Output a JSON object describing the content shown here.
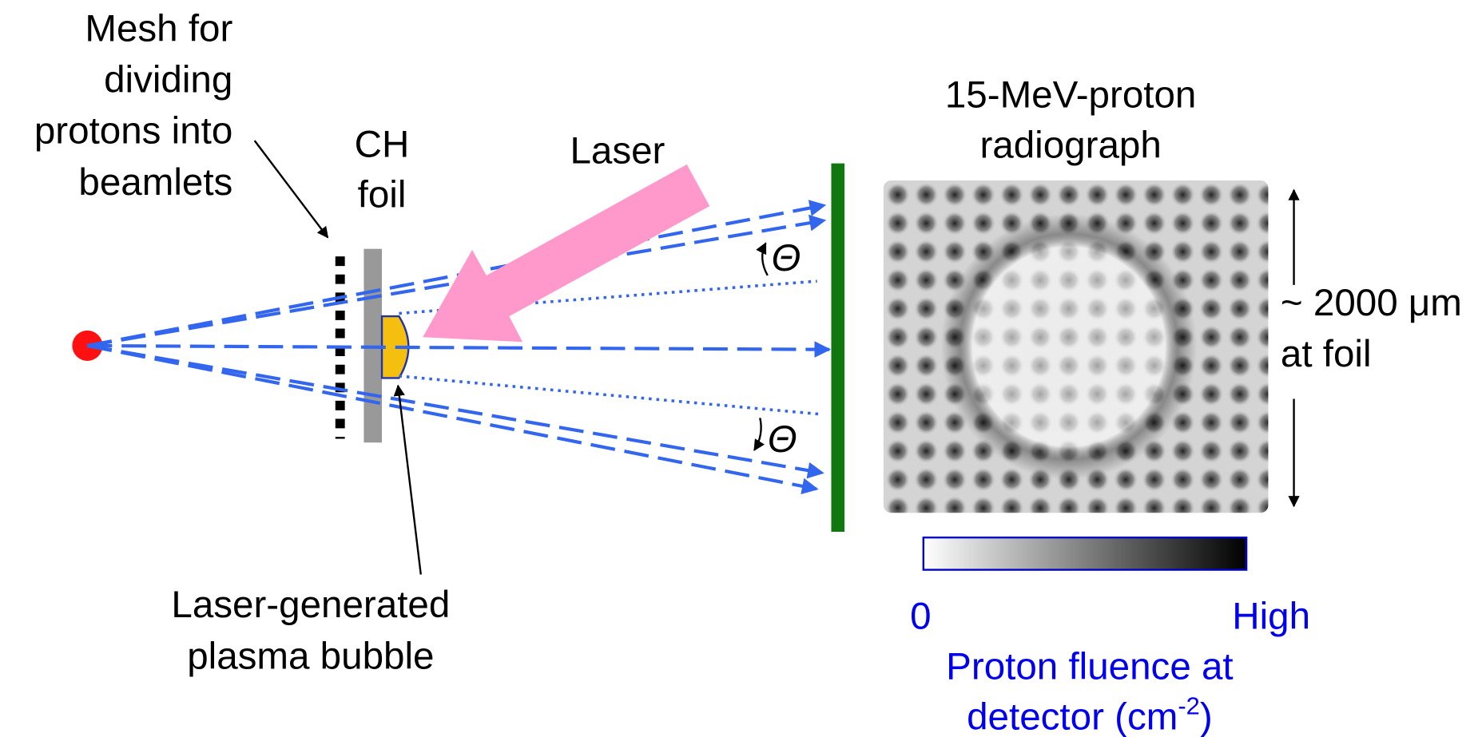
{
  "labels": {
    "mesh": [
      "Mesh for",
      "dividing",
      "protons into",
      "beamlets"
    ],
    "foil": [
      "CH",
      "foil"
    ],
    "laser": "Laser",
    "theta_top": "Θ",
    "theta_bottom": "Θ",
    "bubble": [
      "Laser-generated",
      "plasma bubble"
    ],
    "radiograph": [
      "15-MeV-proton",
      "radiograph"
    ],
    "size": [
      "~ 2000 μm",
      "at foil"
    ],
    "colorbar_min": "0",
    "colorbar_max": "High",
    "fluence": {
      "line1": "Proton fluence at",
      "line2_prefix": "detector (cm",
      "line2_exponent": "-2",
      "line2_suffix": ")"
    }
  }
}
